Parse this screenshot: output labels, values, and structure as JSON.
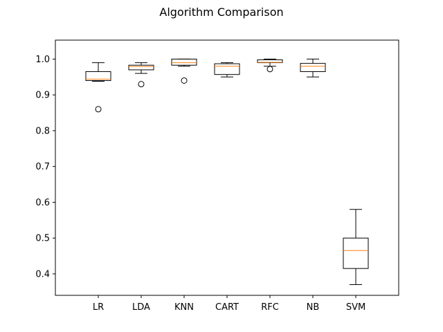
{
  "chart_data": {
    "type": "box",
    "title": "Algorithm Comparison",
    "xlabel": "",
    "ylabel": "",
    "ylim": [
      0.34,
      1.053
    ],
    "yticks": [
      0.4,
      0.5,
      0.6,
      0.7,
      0.8,
      0.9,
      1.0
    ],
    "ytick_labels": [
      "0.4",
      "0.5",
      "0.6",
      "0.7",
      "0.8",
      "0.9",
      "1.0"
    ],
    "grid": false,
    "colors": {
      "box": "#000000",
      "median": "#ff7f0e"
    },
    "categories": [
      "LR",
      "LDA",
      "KNN",
      "CART",
      "RFC",
      "NB",
      "SVM"
    ],
    "boxes": [
      {
        "label": "LR",
        "whislo": 0.938,
        "q1": 0.94,
        "med": 0.944,
        "q3": 0.965,
        "whishi": 0.99,
        "fliers": [
          0.86
        ]
      },
      {
        "label": "LDA",
        "whislo": 0.96,
        "q1": 0.97,
        "med": 0.979,
        "q3": 0.983,
        "whishi": 0.99,
        "fliers": [
          0.93
        ]
      },
      {
        "label": "KNN",
        "whislo": 0.98,
        "q1": 0.983,
        "med": 0.99,
        "q3": 1.0,
        "whishi": 1.0,
        "fliers": [
          0.94
        ]
      },
      {
        "label": "CART",
        "whislo": 0.95,
        "q1": 0.957,
        "med": 0.98,
        "q3": 0.987,
        "whishi": 0.99,
        "fliers": []
      },
      {
        "label": "RFC",
        "whislo": 0.98,
        "q1": 0.99,
        "med": 0.991,
        "q3": 0.998,
        "whishi": 1.0,
        "fliers": [
          0.972
        ]
      },
      {
        "label": "NB",
        "whislo": 0.95,
        "q1": 0.965,
        "med": 0.98,
        "q3": 0.988,
        "whishi": 1.0,
        "fliers": []
      },
      {
        "label": "SVM",
        "whislo": 0.37,
        "q1": 0.415,
        "med": 0.465,
        "q3": 0.5,
        "whishi": 0.58,
        "fliers": []
      }
    ]
  }
}
